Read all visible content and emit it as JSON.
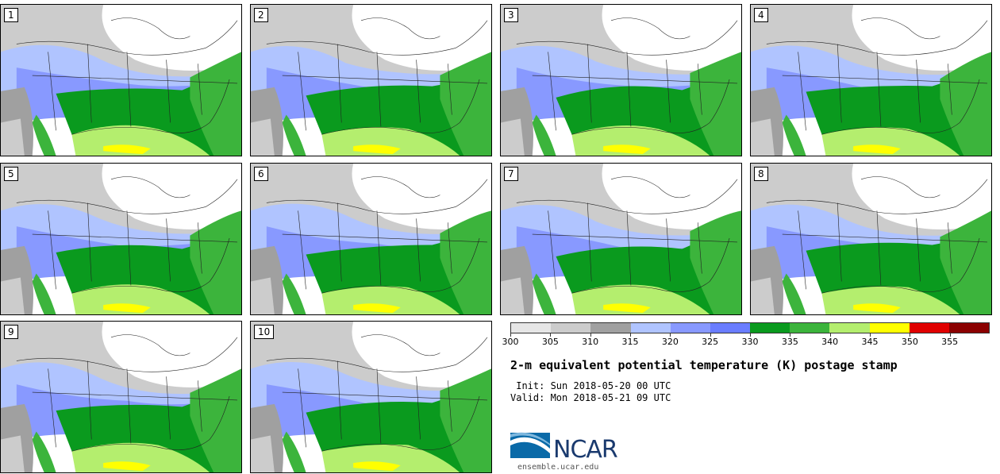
{
  "panels": [
    {
      "label": "1"
    },
    {
      "label": "2"
    },
    {
      "label": "3"
    },
    {
      "label": "4"
    },
    {
      "label": "5"
    },
    {
      "label": "6"
    },
    {
      "label": "7"
    },
    {
      "label": "8"
    },
    {
      "label": "9"
    },
    {
      "label": "10"
    }
  ],
  "legend": {
    "colors": [
      "#e6e6e6",
      "#cccccc",
      "#a0a0a0",
      "#b0c4ff",
      "#8899ff",
      "#6a7dff",
      "#0a9a1e",
      "#3cb43c",
      "#b4ee6e",
      "#ffff00",
      "#e00000",
      "#8b0000"
    ],
    "ticks": [
      "300",
      "305",
      "310",
      "315",
      "320",
      "325",
      "330",
      "335",
      "340",
      "345",
      "350",
      "355"
    ]
  },
  "title": "2-m equivalent potential temperature (K) postage stamp",
  "init": " Init: Sun 2018-05-20 00 UTC",
  "valid": "Valid: Mon 2018-05-21 09 UTC",
  "brand": {
    "name": "NCAR",
    "url": "ensemble.ucar.edu"
  }
}
